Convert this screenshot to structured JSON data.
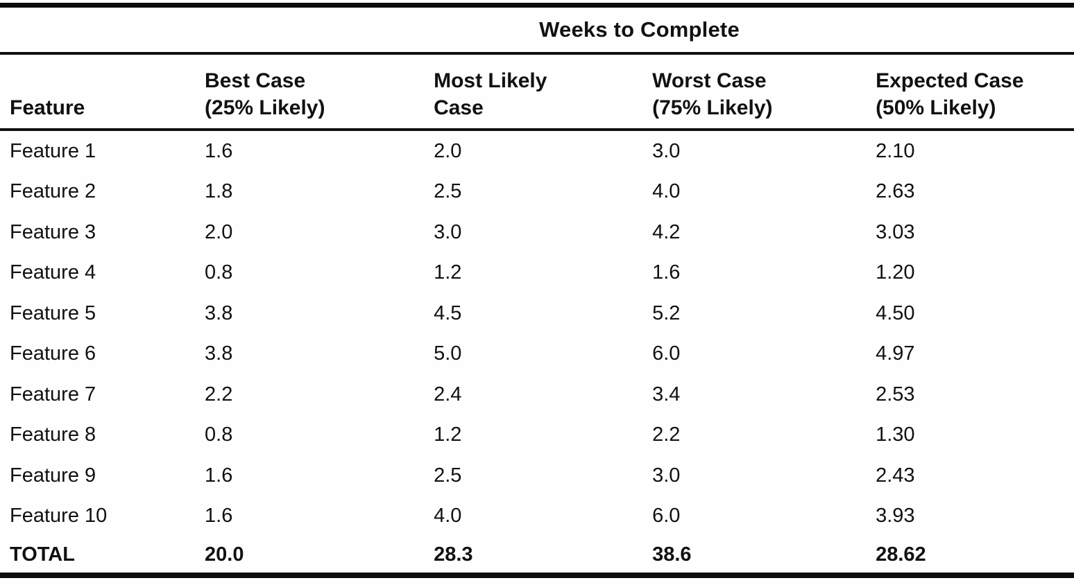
{
  "colors": {
    "ink": "#111111",
    "paper": "#fefefe"
  },
  "table": {
    "title": "Weeks to Complete",
    "columns": [
      {
        "label": "Feature"
      },
      {
        "label": "Best Case\n(25% Likely)"
      },
      {
        "label": "Most Likely\nCase"
      },
      {
        "label": "Worst Case\n(75% Likely)"
      },
      {
        "label": "Expected Case\n(50% Likely)"
      }
    ],
    "rows": [
      {
        "feature": "Feature 1",
        "best": "1.6",
        "most": "2.0",
        "worst": "3.0",
        "expected": "2.10"
      },
      {
        "feature": "Feature 2",
        "best": "1.8",
        "most": "2.5",
        "worst": "4.0",
        "expected": "2.63"
      },
      {
        "feature": "Feature 3",
        "best": "2.0",
        "most": "3.0",
        "worst": "4.2",
        "expected": "3.03"
      },
      {
        "feature": "Feature 4",
        "best": "0.8",
        "most": "1.2",
        "worst": "1.6",
        "expected": "1.20"
      },
      {
        "feature": "Feature 5",
        "best": "3.8",
        "most": "4.5",
        "worst": "5.2",
        "expected": "4.50"
      },
      {
        "feature": "Feature 6",
        "best": "3.8",
        "most": "5.0",
        "worst": "6.0",
        "expected": "4.97"
      },
      {
        "feature": "Feature 7",
        "best": "2.2",
        "most": "2.4",
        "worst": "3.4",
        "expected": "2.53"
      },
      {
        "feature": "Feature 8",
        "best": "0.8",
        "most": "1.2",
        "worst": "2.2",
        "expected": "1.30"
      },
      {
        "feature": "Feature 9",
        "best": "1.6",
        "most": "2.5",
        "worst": "3.0",
        "expected": "2.43"
      },
      {
        "feature": "Feature 10",
        "best": "1.6",
        "most": "4.0",
        "worst": "6.0",
        "expected": "3.93"
      }
    ],
    "total": {
      "feature": "TOTAL",
      "best": "20.0",
      "most": "28.3",
      "worst": "38.6",
      "expected": "28.62"
    }
  }
}
